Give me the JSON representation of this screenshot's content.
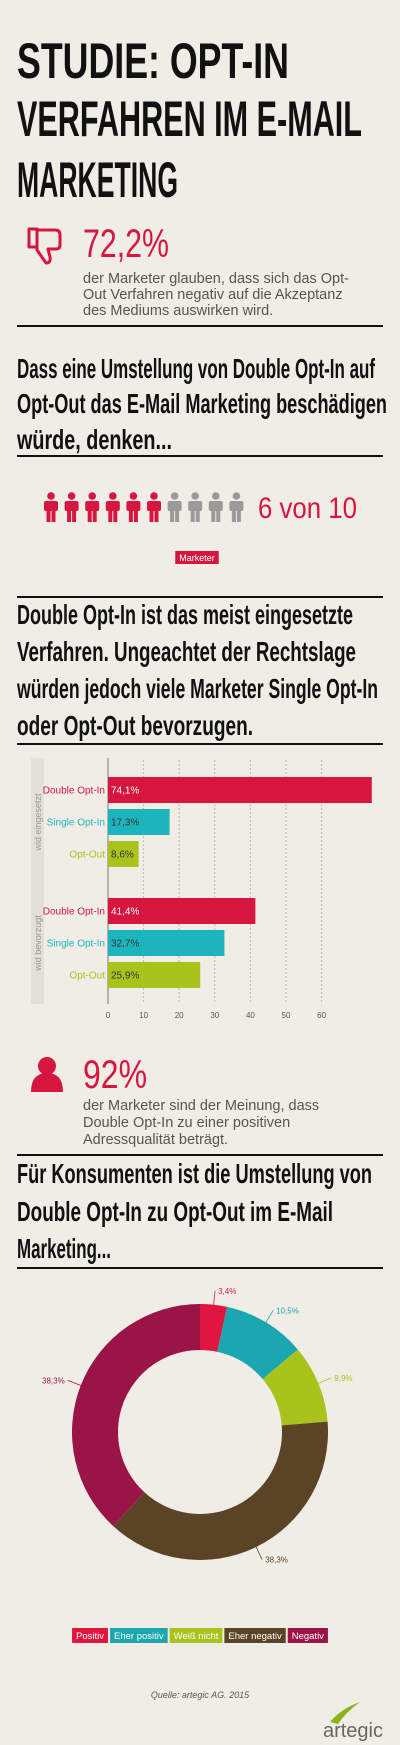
{
  "header": {
    "title_lines": [
      "STUDIE: OPT-IN",
      "VERFAHREN IM E-MAIL",
      "MARKETING"
    ]
  },
  "stat_1": {
    "value_text": "72,2%",
    "text_lines": [
      "der Marketer glauben, dass sich das Opt-",
      "Out Verfahren negativ auf die Akzeptanz",
      "des Mediums auswirken wird."
    ]
  },
  "heading_1": {
    "lines": [
      "Dass eine Umstellung von Double Opt-In auf",
      "Opt-Out das E-Mail Marketing beschädigen",
      "würde, denken..."
    ]
  },
  "heading_2": {
    "lines": [
      "Double Opt-In ist das meist eingesetzte",
      "Verfahren. Ungeachtet der Rechtslage",
      "würden jedoch viele Marketer Single Opt-In",
      "oder Opt-Out bevorzugen."
    ]
  },
  "stat_2": {
    "value_text": "92%",
    "text_lines": [
      "der Marketer sind der Meinung, dass",
      "Double Opt-In zu einer positiven",
      "Adressqualität beträgt."
    ]
  },
  "heading_3": {
    "lines": [
      "Für Konsumenten ist die Umstellung von",
      "Double Opt-In zu Opt-Out im E-Mail",
      "Marketing..."
    ]
  },
  "chart_data": [
    {
      "type": "pictogram",
      "value": 6,
      "total": 10,
      "value_label": "6 von 10",
      "label": "Marketer",
      "color": "#d6163f",
      "rest_color": "#9a9a9a"
    },
    {
      "type": "bar",
      "orientation": "horizontal",
      "categories": [
        "Double Opt-In",
        "Single Opt-In",
        "Opt-Out"
      ],
      "colors": [
        "#d6163f",
        "#1db5bd",
        "#a8c31b"
      ],
      "series": [
        {
          "name": "wid eingesetzt",
          "values": [
            74.1,
            17.3,
            8.6
          ],
          "value_labels": [
            "74,1%",
            "17,3%",
            "8,6%"
          ]
        },
        {
          "name": "wid bevorzugt",
          "values": [
            41.4,
            32.7,
            25.9
          ],
          "value_labels": [
            "41,4%",
            "32,7%",
            "25,9%"
          ]
        }
      ],
      "xlim": [
        0,
        75
      ],
      "xticks": [
        0,
        10,
        20,
        30,
        40,
        50,
        60
      ],
      "grid": true
    },
    {
      "type": "donut",
      "categories": [
        "Positiv",
        "Eher positiv",
        "Weiß nicht",
        "Eher negativ",
        "Negativ"
      ],
      "values": [
        3.4,
        10.5,
        9.9,
        38.3,
        38.3
      ],
      "value_labels": [
        "3,4%",
        "10,5%",
        "9,9%",
        "38,3%",
        "38,3%"
      ],
      "colors": [
        "#e0163f",
        "#1aa7b0",
        "#a8c31b",
        "#5b4426",
        "#9b1448"
      ]
    }
  ],
  "footer": {
    "source": "Quelle: artegic AG. 2015",
    "logo": "artegic"
  }
}
